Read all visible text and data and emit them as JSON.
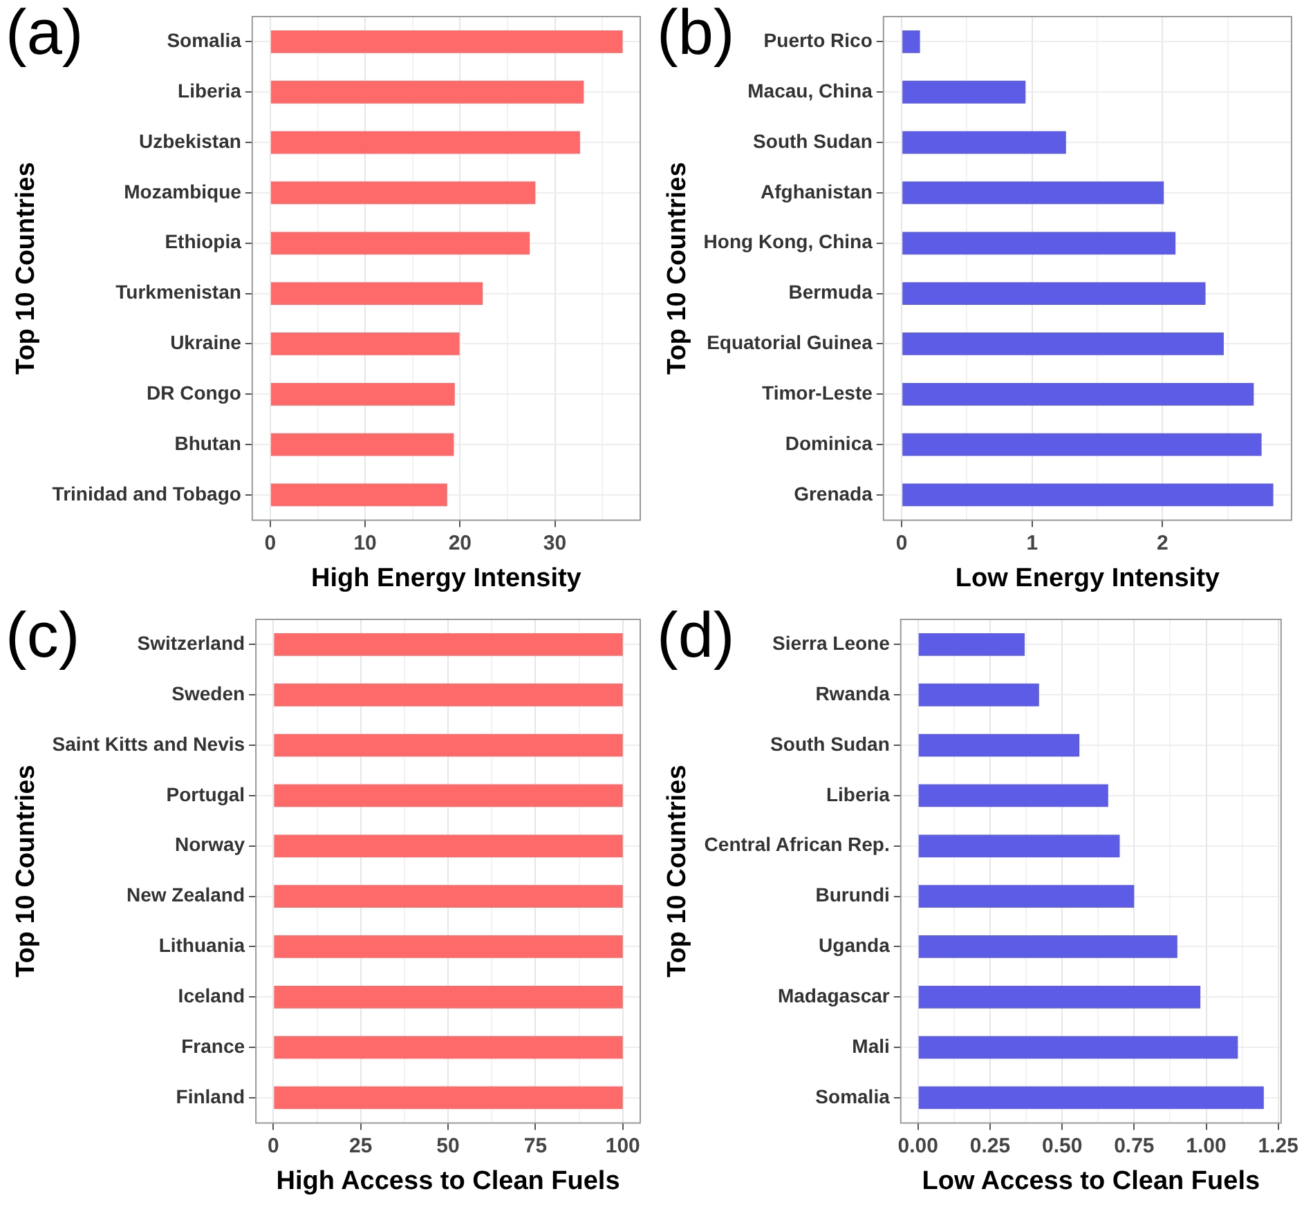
{
  "chart_data": [
    {
      "type": "bar",
      "orientation": "horizontal",
      "title": "(a)",
      "xlabel": "High Energy Intensity",
      "ylabel": "Top 10 Countries",
      "categories": [
        "Somalia",
        "Liberia",
        "Uzbekistan",
        "Mozambique",
        "Ethiopia",
        "Turkmenistan",
        "Ukraine",
        "DR Congo",
        "Bhutan",
        "Trinidad and Tobago"
      ],
      "values": [
        37.15,
        33.05,
        32.65,
        27.95,
        27.35,
        22.4,
        19.95,
        19.45,
        19.35,
        18.65
      ],
      "color": "#fe6a6a",
      "xlim": [
        -1.9,
        39
      ],
      "xticks": [
        0,
        {
          "value": 5,
          "label": null
        },
        10,
        {
          "value": 15,
          "label": null
        },
        20,
        {
          "value": 25,
          "label": null
        },
        30,
        {
          "value": 35,
          "label": null
        }
      ],
      "grid": true
    },
    {
      "type": "bar",
      "orientation": "horizontal",
      "title": "(b)",
      "xlabel": "Low Energy Intensity",
      "ylabel": "Top 10 Countries",
      "categories": [
        "Puerto Rico",
        "Macau, China",
        "South Sudan",
        "Afghanistan",
        "Hong Kong, China",
        "Bermuda",
        "Equatorial Guinea",
        "Timor-Leste",
        "Dominica",
        "Grenada"
      ],
      "values": [
        0.14,
        0.95,
        1.26,
        2.01,
        2.1,
        2.33,
        2.47,
        2.7,
        2.76,
        2.85
      ],
      "color": "#5c5ce6",
      "xlim": [
        -0.14,
        2.99
      ],
      "xticks": [
        0,
        {
          "value": 0.5,
          "label": null
        },
        1,
        {
          "value": 1.5,
          "label": null
        },
        2,
        {
          "value": 2.5,
          "label": null
        }
      ],
      "grid": true
    },
    {
      "type": "bar",
      "orientation": "horizontal",
      "title": "(c)",
      "xlabel": "High Access to Clean Fuels",
      "ylabel": "Top 10 Countries",
      "categories": [
        "Switzerland",
        "Sweden",
        "Saint Kitts and Nevis",
        "Portugal",
        "Norway",
        "New Zealand",
        "Lithuania",
        "Iceland",
        "France",
        "Finland"
      ],
      "values": [
        100,
        100,
        100,
        100,
        100,
        100,
        100,
        100,
        100,
        100
      ],
      "color": "#fe6a6a",
      "xlim": [
        -5,
        105
      ],
      "xticks": [
        0,
        {
          "value": 12.5,
          "label": null
        },
        25,
        {
          "value": 37.5,
          "label": null
        },
        50,
        {
          "value": 62.5,
          "label": null
        },
        75,
        {
          "value": 87.5,
          "label": null
        },
        100
      ],
      "grid": true
    },
    {
      "type": "bar",
      "orientation": "horizontal",
      "title": "(d)",
      "xlabel": "Low Access to Clean Fuels",
      "ylabel": "Top 10 Countries",
      "categories": [
        "Sierra Leone",
        "Rwanda",
        "South Sudan",
        "Liberia",
        "Central African Rep.",
        "Burundi",
        "Uganda",
        "Madagascar",
        "Mali",
        "Somalia"
      ],
      "values": [
        0.37,
        0.42,
        0.56,
        0.66,
        0.7,
        0.75,
        0.9,
        0.98,
        1.11,
        1.2
      ],
      "color": "#5c5ce6",
      "xlim": [
        -0.06,
        1.26
      ],
      "xticks": [
        {
          "value": 0,
          "label": "0.00"
        },
        {
          "value": 0.125,
          "label": null
        },
        {
          "value": 0.25,
          "label": "0.25"
        },
        {
          "value": 0.375,
          "label": null
        },
        {
          "value": 0.5,
          "label": "0.50"
        },
        {
          "value": 0.625,
          "label": null
        },
        {
          "value": 0.75,
          "label": "0.75"
        },
        {
          "value": 0.875,
          "label": null
        },
        {
          "value": 1,
          "label": "1.00"
        },
        {
          "value": 1.125,
          "label": null
        },
        {
          "value": 1.25,
          "label": "1.25"
        }
      ],
      "grid": true
    }
  ]
}
